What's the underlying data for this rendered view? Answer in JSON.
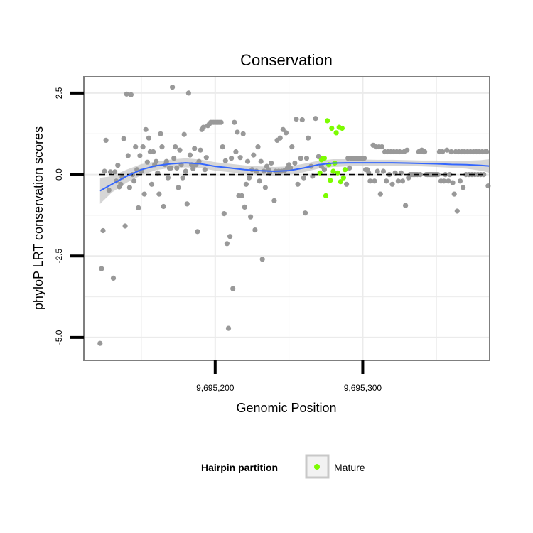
{
  "chart_data": {
    "type": "scatter",
    "title": "Conservation",
    "xlabel": "Genomic Position",
    "ylabel": "phyloP LRT conservation scores",
    "xlim": [
      9695111,
      9695386
    ],
    "ylim": [
      -5.7,
      3.0
    ],
    "x_ticks": [
      {
        "value": 9695200,
        "label": "9,695,200"
      },
      {
        "value": 9695300,
        "label": "9,695,300"
      }
    ],
    "y_ticks": [
      {
        "value": 2.5,
        "label": "2.5"
      },
      {
        "value": 0,
        "label": "0.0"
      },
      {
        "value": -2.5,
        "label": "-2.5"
      },
      {
        "value": -5,
        "label": "-5.0"
      }
    ],
    "hline": 0,
    "grid": true,
    "legend": {
      "title": "Hairpin partition",
      "entries": [
        {
          "label": "Mature",
          "color": "#7cfc00"
        }
      ],
      "position": "bottom"
    },
    "colors": {
      "points": "#999999",
      "mature": "#7cfc00",
      "smooth": "#3366ff",
      "band": "#c8c8c8",
      "panel_border": "#7f7f7f",
      "grid": "#ebebeb"
    },
    "series": [
      {
        "name": "",
        "color": "#999999",
        "points": [
          [
            9695122,
            -5.18
          ],
          [
            9695123,
            -2.89
          ],
          [
            9695124,
            -1.72
          ],
          [
            9695125,
            0.1
          ],
          [
            9695126,
            1.05
          ],
          [
            9695128,
            -0.48
          ],
          [
            9695129,
            0.08
          ],
          [
            9695131,
            -3.18
          ],
          [
            9695132,
            0.08
          ],
          [
            9695133,
            -0.2
          ],
          [
            9695134,
            0.28
          ],
          [
            9695135,
            -0.38
          ],
          [
            9695136,
            -0.3
          ],
          [
            9695137,
            -0.08
          ],
          [
            9695138,
            1.1
          ],
          [
            9695139,
            -1.58
          ],
          [
            9695140,
            2.47
          ],
          [
            9695141,
            0.58
          ],
          [
            9695142,
            -0.4
          ],
          [
            9695143,
            2.45
          ],
          [
            9695144,
            0.0
          ],
          [
            9695145,
            -0.2
          ],
          [
            9695146,
            0.85
          ],
          [
            9695147,
            0.15
          ],
          [
            9695148,
            -1.02
          ],
          [
            9695149,
            0.58
          ],
          [
            9695150,
            0.1
          ],
          [
            9695151,
            0.85
          ],
          [
            9695152,
            -0.6
          ],
          [
            9695153,
            1.38
          ],
          [
            9695154,
            0.38
          ],
          [
            9695155,
            1.12
          ],
          [
            9695156,
            0.7
          ],
          [
            9695157,
            -0.3
          ],
          [
            9695158,
            0.7
          ],
          [
            9695159,
            0.3
          ],
          [
            9695160,
            0.4
          ],
          [
            9695161,
            0.05
          ],
          [
            9695162,
            -0.6
          ],
          [
            9695163,
            1.25
          ],
          [
            9695164,
            0.85
          ],
          [
            9695165,
            -0.98
          ],
          [
            9695166,
            0.3
          ],
          [
            9695167,
            0.4
          ],
          [
            9695168,
            -0.1
          ],
          [
            9695169,
            0.2
          ],
          [
            9695170,
            0.2
          ],
          [
            9695171,
            2.68
          ],
          [
            9695172,
            0.5
          ],
          [
            9695173,
            0.85
          ],
          [
            9695174,
            0.2
          ],
          [
            9695175,
            -0.4
          ],
          [
            9695176,
            0.75
          ],
          [
            9695177,
            0.3
          ],
          [
            9695178,
            -0.1
          ],
          [
            9695179,
            1.23
          ],
          [
            9695180,
            0.1
          ],
          [
            9695181,
            -0.9
          ],
          [
            9695182,
            2.5
          ],
          [
            9695183,
            0.6
          ],
          [
            9695184,
            0.3
          ],
          [
            9695185,
            0.18
          ],
          [
            9695186,
            0.8
          ],
          [
            9695187,
            0.3
          ],
          [
            9695188,
            -1.75
          ],
          [
            9695189,
            0.4
          ],
          [
            9695190,
            0.75
          ],
          [
            9695191,
            1.38
          ],
          [
            9695192,
            1.45
          ],
          [
            9695193,
            0.15
          ],
          [
            9695194,
            0.52
          ],
          [
            9695195,
            1.5
          ],
          [
            9695196,
            1.55
          ],
          [
            9695197,
            1.6
          ],
          [
            9695198,
            1.6
          ],
          [
            9695199,
            1.6
          ],
          [
            9695200,
            1.6
          ],
          [
            9695201,
            1.6
          ],
          [
            9695202,
            1.6
          ],
          [
            9695203,
            1.6
          ],
          [
            9695204,
            1.6
          ],
          [
            9695205,
            0.85
          ],
          [
            9695206,
            -1.2
          ],
          [
            9695207,
            0.42
          ],
          [
            9695208,
            -2.12
          ],
          [
            9695209,
            -4.72
          ],
          [
            9695210,
            -1.9
          ],
          [
            9695211,
            0.5
          ],
          [
            9695212,
            -3.5
          ],
          [
            9695213,
            1.6
          ],
          [
            9695214,
            0.7
          ],
          [
            9695215,
            1.3
          ],
          [
            9695216,
            -0.65
          ],
          [
            9695217,
            0.52
          ],
          [
            9695218,
            -0.65
          ],
          [
            9695219,
            1.25
          ],
          [
            9695220,
            -1.0
          ],
          [
            9695221,
            -0.3
          ],
          [
            9695222,
            0.4
          ],
          [
            9695223,
            -0.1
          ],
          [
            9695224,
            -1.3
          ],
          [
            9695225,
            0.15
          ],
          [
            9695226,
            0.6
          ],
          [
            9695227,
            -1.7
          ],
          [
            9695228,
            0.1
          ],
          [
            9695229,
            0.85
          ],
          [
            9695230,
            -0.2
          ],
          [
            9695231,
            0.4
          ],
          [
            9695232,
            -2.6
          ],
          [
            9695233,
            0.1
          ],
          [
            9695234,
            -0.4
          ],
          [
            9695235,
            0.25
          ],
          [
            9695236,
            0.15
          ],
          [
            9695237,
            0.05
          ],
          [
            9695238,
            0.35
          ],
          [
            9695240,
            -0.8
          ],
          [
            9695241,
            0.1
          ],
          [
            9695242,
            1.05
          ],
          [
            9695243,
            0.1
          ],
          [
            9695244,
            1.12
          ],
          [
            9695245,
            0.1
          ],
          [
            9695246,
            1.38
          ],
          [
            9695247,
            0.12
          ],
          [
            9695248,
            1.28
          ],
          [
            9695249,
            0.2
          ],
          [
            9695250,
            0.3
          ],
          [
            9695251,
            0.2
          ],
          [
            9695252,
            0.85
          ],
          [
            9695254,
            0.35
          ],
          [
            9695255,
            1.7
          ],
          [
            9695256,
            -0.3
          ],
          [
            9695258,
            0.5
          ],
          [
            9695259,
            1.68
          ],
          [
            9695260,
            -0.1
          ],
          [
            9695261,
            -1.18
          ],
          [
            9695262,
            0.5
          ],
          [
            9695263,
            1.12
          ],
          [
            9695265,
            0.25
          ],
          [
            9695266,
            -0.05
          ],
          [
            9695268,
            1.72
          ],
          [
            9695270,
            0.55
          ],
          [
            9695272,
            0.25
          ],
          [
            9695274,
            0.15
          ],
          [
            9695288,
            0.15
          ],
          [
            9695289,
            -0.3
          ],
          [
            9695290,
            0.5
          ],
          [
            9695291,
            0.2
          ],
          [
            9695292,
            0.5
          ],
          [
            9695293,
            0.5
          ],
          [
            9695294,
            0.5
          ],
          [
            9695295,
            0.5
          ],
          [
            9695296,
            0.5
          ],
          [
            9695297,
            0.5
          ],
          [
            9695298,
            0.5
          ],
          [
            9695299,
            0.5
          ],
          [
            9695300,
            0.5
          ],
          [
            9695301,
            0.5
          ],
          [
            9695302,
            0.15
          ],
          [
            9695303,
            0.15
          ],
          [
            9695304,
            0.05
          ],
          [
            9695305,
            -0.2
          ],
          [
            9695307,
            0.9
          ],
          [
            9695308,
            -0.2
          ],
          [
            9695309,
            0.85
          ],
          [
            9695310,
            0.1
          ],
          [
            9695311,
            0.85
          ],
          [
            9695312,
            -0.6
          ],
          [
            9695313,
            0.85
          ],
          [
            9695314,
            0.1
          ],
          [
            9695315,
            0.7
          ],
          [
            9695316,
            -0.2
          ],
          [
            9695317,
            0.7
          ],
          [
            9695318,
            0.0
          ],
          [
            9695319,
            0.7
          ],
          [
            9695320,
            -0.3
          ],
          [
            9695321,
            0.7
          ],
          [
            9695322,
            0.05
          ],
          [
            9695323,
            0.7
          ],
          [
            9695324,
            -0.2
          ],
          [
            9695325,
            0.7
          ],
          [
            9695326,
            0.05
          ],
          [
            9695327,
            -0.2
          ],
          [
            9695328,
            0.7
          ],
          [
            9695329,
            -0.95
          ],
          [
            9695330,
            0.75
          ],
          [
            9695331,
            -0.1
          ],
          [
            9695332,
            0.0
          ],
          [
            9695333,
            0.0
          ],
          [
            9695334,
            0.0
          ],
          [
            9695335,
            0.0
          ],
          [
            9695336,
            0.0
          ],
          [
            9695337,
            0.0
          ],
          [
            9695338,
            0.7
          ],
          [
            9695339,
            0.0
          ],
          [
            9695340,
            0.75
          ],
          [
            9695341,
            0.7
          ],
          [
            9695342,
            0.7
          ],
          [
            9695343,
            0.0
          ],
          [
            9695344,
            0.0
          ],
          [
            9695345,
            0.0
          ],
          [
            9695346,
            0.0
          ],
          [
            9695347,
            0.0
          ],
          [
            9695348,
            0.0
          ],
          [
            9695349,
            0.0
          ],
          [
            9695350,
            0.0
          ],
          [
            9695351,
            0.0
          ],
          [
            9695352,
            0.7
          ],
          [
            9695353,
            -0.2
          ],
          [
            9695354,
            0.7
          ],
          [
            9695355,
            -0.2
          ],
          [
            9695356,
            0.0
          ],
          [
            9695357,
            0.75
          ],
          [
            9695358,
            -0.2
          ],
          [
            9695359,
            0.0
          ],
          [
            9695360,
            0.7
          ],
          [
            9695361,
            -0.25
          ],
          [
            9695362,
            -0.6
          ],
          [
            9695363,
            0.7
          ],
          [
            9695364,
            -1.12
          ],
          [
            9695365,
            0.7
          ],
          [
            9695366,
            -0.2
          ],
          [
            9695367,
            0.7
          ],
          [
            9695368,
            -0.4
          ],
          [
            9695369,
            0.7
          ],
          [
            9695370,
            0.0
          ],
          [
            9695371,
            0.7
          ],
          [
            9695372,
            0.0
          ],
          [
            9695373,
            0.7
          ],
          [
            9695374,
            0.0
          ],
          [
            9695375,
            0.7
          ],
          [
            9695376,
            0.0
          ],
          [
            9695377,
            0.7
          ],
          [
            9695378,
            0.0
          ],
          [
            9695379,
            0.7
          ],
          [
            9695380,
            0.0
          ],
          [
            9695381,
            0.7
          ],
          [
            9695382,
            0.0
          ],
          [
            9695383,
            0.7
          ],
          [
            9695384,
            0.7
          ],
          [
            9695385,
            -0.35
          ]
        ]
      },
      {
        "name": "Mature",
        "color": "#7cfc00",
        "points": [
          [
            9695271,
            0.05
          ],
          [
            9695272,
            0.45
          ],
          [
            9695273,
            0.5
          ],
          [
            9695274,
            0.5
          ],
          [
            9695275,
            -0.65
          ],
          [
            9695276,
            1.65
          ],
          [
            9695277,
            0.3
          ],
          [
            9695278,
            -0.18
          ],
          [
            9695279,
            1.42
          ],
          [
            9695280,
            0.1
          ],
          [
            9695281,
            0.35
          ],
          [
            9695282,
            1.28
          ],
          [
            9695283,
            0.05
          ],
          [
            9695284,
            1.45
          ],
          [
            9695285,
            -0.22
          ],
          [
            9695286,
            1.42
          ],
          [
            9695287,
            -0.1
          ],
          [
            9695288,
            0.15
          ]
        ]
      }
    ],
    "smooth": {
      "x": [
        9695122,
        9695130,
        9695140,
        9695150,
        9695160,
        9695170,
        9695180,
        9695190,
        9695200,
        9695210,
        9695220,
        9695230,
        9695240,
        9695250,
        9695260,
        9695270,
        9695280,
        9695290,
        9695300,
        9695310,
        9695320,
        9695330,
        9695340,
        9695350,
        9695360,
        9695370,
        9695380,
        9695386
      ],
      "y": [
        -0.5,
        -0.3,
        -0.05,
        0.15,
        0.27,
        0.33,
        0.36,
        0.33,
        0.25,
        0.2,
        0.15,
        0.12,
        0.1,
        0.12,
        0.2,
        0.3,
        0.35,
        0.36,
        0.36,
        0.36,
        0.36,
        0.35,
        0.34,
        0.33,
        0.31,
        0.3,
        0.28,
        0.26
      ],
      "lower": [
        -0.9,
        -0.55,
        -0.25,
        -0.02,
        0.14,
        0.2,
        0.22,
        0.2,
        0.12,
        0.07,
        0.02,
        -0.01,
        -0.03,
        -0.01,
        0.07,
        0.18,
        0.23,
        0.25,
        0.26,
        0.27,
        0.27,
        0.26,
        0.25,
        0.23,
        0.21,
        0.18,
        0.12,
        0.05
      ],
      "upper": [
        -0.1,
        -0.05,
        0.15,
        0.32,
        0.4,
        0.46,
        0.5,
        0.46,
        0.38,
        0.33,
        0.28,
        0.25,
        0.23,
        0.25,
        0.33,
        0.42,
        0.47,
        0.47,
        0.46,
        0.45,
        0.45,
        0.44,
        0.43,
        0.43,
        0.41,
        0.42,
        0.44,
        0.47
      ]
    }
  }
}
